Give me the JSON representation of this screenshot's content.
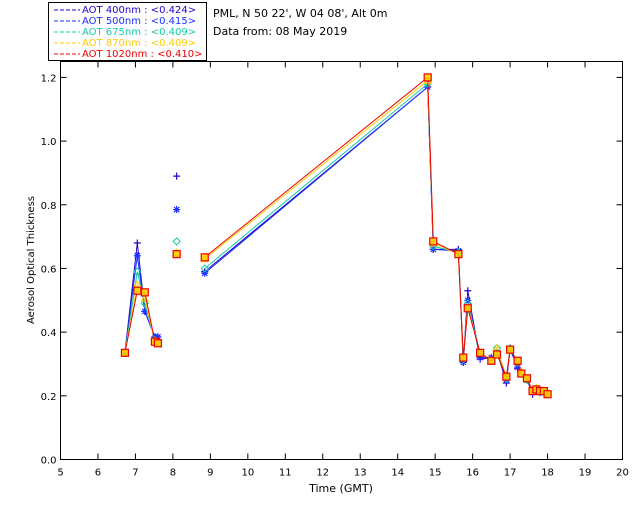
{
  "header": {
    "station": "PML, N 50 22', W 04 08', Alt 0m",
    "date_line": "Data from: 08 May 2019"
  },
  "legend": {
    "placement": "top-left",
    "entries": [
      {
        "label": "AOT  400nm : <0.424>",
        "color": "#2200cc",
        "marker": "plus"
      },
      {
        "label": "AOT  500nm : <0.415>",
        "color": "#1a2eff",
        "marker": "asterisk"
      },
      {
        "label": "AOT  675nm : <0.409>",
        "color": "#11ccaa",
        "marker": "diamond"
      },
      {
        "label": "AOT  870nm : <0.409>",
        "color": "#ffcc00",
        "marker": "triangle"
      },
      {
        "label": "AOT 1020nm : <0.410>",
        "color": "#ee0000",
        "marker": "square"
      }
    ]
  },
  "chart_data": {
    "type": "line",
    "title": "",
    "xlabel": "Time (GMT)",
    "ylabel": "Aerosol Optical Thickness",
    "xlim": [
      5,
      20
    ],
    "ylim": [
      0.0,
      1.25
    ],
    "xticks": [
      5,
      6,
      7,
      8,
      9,
      10,
      11,
      12,
      13,
      14,
      15,
      16,
      17,
      18,
      19,
      20
    ],
    "yticks": [
      0.0,
      0.2,
      0.4,
      0.6,
      0.8,
      1.0,
      1.2
    ],
    "ytick_labels": [
      "0.0",
      "0.2",
      "0.4",
      "0.6",
      "0.8",
      "1.0",
      "1.2"
    ],
    "grid": false,
    "x": [
      6.72,
      7.05,
      7.25,
      7.52,
      7.6,
      8.1,
      8.85,
      14.8,
      14.95,
      15.62,
      15.75,
      15.87,
      16.2,
      16.5,
      16.65,
      16.9,
      17.0,
      17.2,
      17.3,
      17.45,
      17.6,
      17.7,
      17.8,
      17.9,
      18.0
    ],
    "series": [
      {
        "name": "AOT  400nm : <0.424>",
        "color": "#2200cc",
        "marker": "plus",
        "values": [
          0.335,
          0.68,
          0.465,
          0.385,
          0.385,
          0.89,
          0.59,
          1.17,
          0.66,
          0.66,
          0.305,
          0.53,
          0.315,
          0.32,
          0.34,
          0.24,
          0.35,
          0.285,
          0.27,
          0.25,
          0.205,
          0.22,
          0.21,
          0.215,
          0.205
        ]
      },
      {
        "name": "AOT  500nm : <0.415>",
        "color": "#1a2eff",
        "marker": "asterisk",
        "values": [
          0.335,
          0.64,
          0.465,
          0.385,
          0.385,
          0.785,
          0.585,
          1.17,
          0.66,
          0.655,
          0.305,
          0.5,
          0.32,
          0.32,
          0.335,
          0.25,
          0.345,
          0.29,
          0.27,
          0.25,
          0.21,
          0.22,
          0.21,
          0.215,
          0.205
        ]
      },
      {
        "name": "AOT  675nm : <0.409>",
        "color": "#11ccaa",
        "marker": "diamond",
        "values": [
          0.335,
          0.59,
          0.49,
          0.375,
          0.37,
          0.685,
          0.6,
          1.18,
          0.67,
          0.65,
          0.315,
          0.49,
          0.335,
          0.31,
          0.35,
          0.255,
          0.35,
          0.305,
          0.275,
          0.25,
          0.215,
          0.22,
          0.215,
          0.215,
          0.205
        ]
      },
      {
        "name": "AOT  870nm : <0.409>",
        "color": "#ffcc00",
        "marker": "triangle",
        "values": [
          0.335,
          0.55,
          0.505,
          0.37,
          0.365,
          0.65,
          0.63,
          1.19,
          0.68,
          0.645,
          0.32,
          0.48,
          0.335,
          0.31,
          0.35,
          0.26,
          0.345,
          0.31,
          0.275,
          0.255,
          0.215,
          0.225,
          0.215,
          0.215,
          0.21
        ]
      },
      {
        "name": "AOT 1020nm : <0.410>",
        "color": "#ee0000",
        "marker": "square",
        "values": [
          0.335,
          0.53,
          0.525,
          0.37,
          0.365,
          0.645,
          0.635,
          1.2,
          0.685,
          0.645,
          0.32,
          0.475,
          0.335,
          0.31,
          0.33,
          0.26,
          0.345,
          0.31,
          0.27,
          0.255,
          0.215,
          0.22,
          0.215,
          0.215,
          0.205
        ]
      }
    ]
  }
}
